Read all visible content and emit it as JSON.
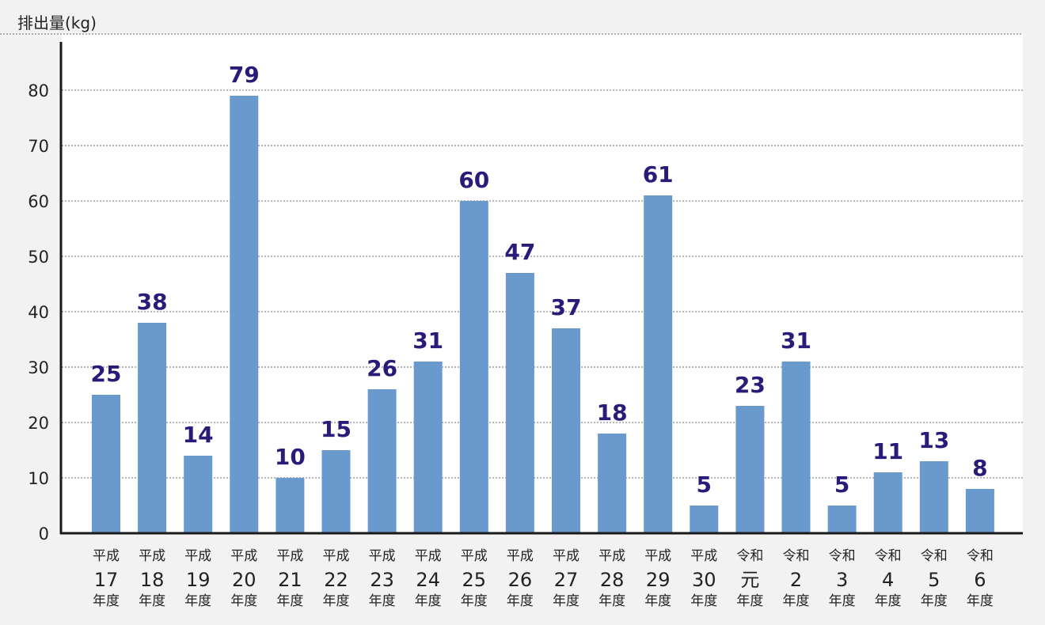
{
  "chart_data": {
    "type": "bar",
    "ylabel": "排出量(kg)",
    "ylim": [
      0,
      88
    ],
    "yticks": [
      0,
      10,
      20,
      30,
      40,
      50,
      60,
      70,
      80
    ],
    "grid": true,
    "colors": {
      "bar": "#6a9acd",
      "value_label": "#2b1a78",
      "plot_bg": "#ffffff",
      "page_bg": "#f2f2f2"
    },
    "categories": [
      {
        "era": "平成",
        "num": "17",
        "suffix": "年度"
      },
      {
        "era": "平成",
        "num": "18",
        "suffix": "年度"
      },
      {
        "era": "平成",
        "num": "19",
        "suffix": "年度"
      },
      {
        "era": "平成",
        "num": "20",
        "suffix": "年度"
      },
      {
        "era": "平成",
        "num": "21",
        "suffix": "年度"
      },
      {
        "era": "平成",
        "num": "22",
        "suffix": "年度"
      },
      {
        "era": "平成",
        "num": "23",
        "suffix": "年度"
      },
      {
        "era": "平成",
        "num": "24",
        "suffix": "年度"
      },
      {
        "era": "平成",
        "num": "25",
        "suffix": "年度"
      },
      {
        "era": "平成",
        "num": "26",
        "suffix": "年度"
      },
      {
        "era": "平成",
        "num": "27",
        "suffix": "年度"
      },
      {
        "era": "平成",
        "num": "28",
        "suffix": "年度"
      },
      {
        "era": "平成",
        "num": "29",
        "suffix": "年度"
      },
      {
        "era": "平成",
        "num": "30",
        "suffix": "年度"
      },
      {
        "era": "令和",
        "num": "元",
        "suffix": "年度"
      },
      {
        "era": "令和",
        "num": "2",
        "suffix": "年度"
      },
      {
        "era": "令和",
        "num": "3",
        "suffix": "年度"
      },
      {
        "era": "令和",
        "num": "4",
        "suffix": "年度"
      },
      {
        "era": "令和",
        "num": "5",
        "suffix": "年度"
      },
      {
        "era": "令和",
        "num": "6",
        "suffix": "年度"
      }
    ],
    "values": [
      25,
      38,
      14,
      79,
      10,
      15,
      26,
      31,
      60,
      47,
      37,
      18,
      61,
      5,
      23,
      31,
      5,
      11,
      13,
      8
    ]
  }
}
